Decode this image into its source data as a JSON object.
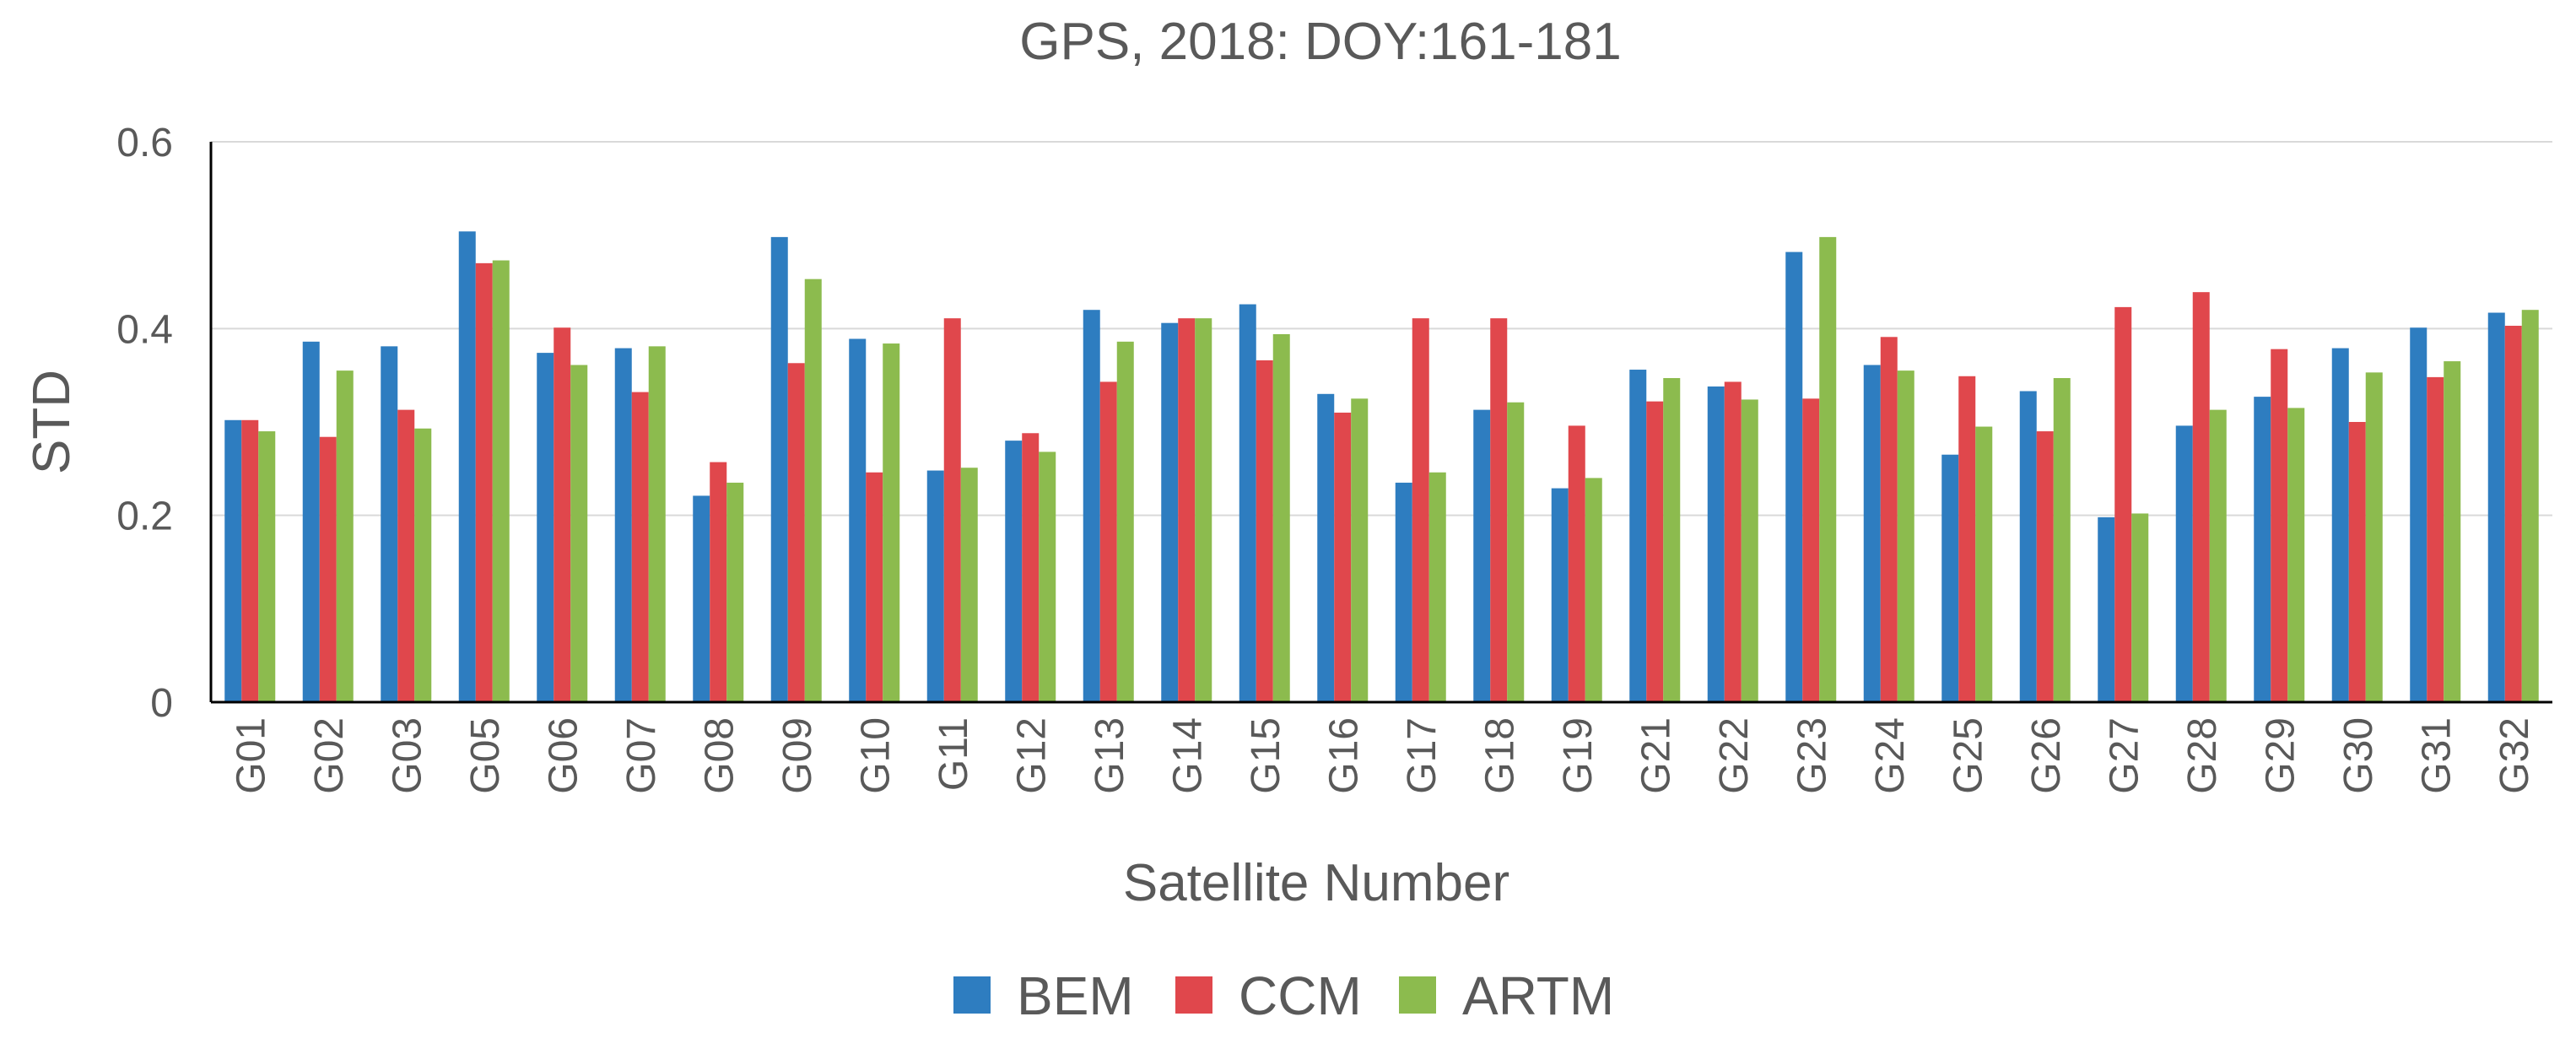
{
  "chart_data": {
    "type": "bar",
    "title": "GPS, 2018: DOY:161-181",
    "xlabel": "Satellite Number",
    "ylabel": "STD",
    "ylim": [
      0,
      0.6
    ],
    "yticks": [
      "0",
      "0.2",
      "0.4",
      "0.6"
    ],
    "grid": true,
    "legend_position": "bottom",
    "categories": [
      "G01",
      "G02",
      "G03",
      "G05",
      "G06",
      "G07",
      "G08",
      "G09",
      "G10",
      "G11",
      "G12",
      "G13",
      "G14",
      "G15",
      "G16",
      "G17",
      "G18",
      "G19",
      "G21",
      "G22",
      "G23",
      "G24",
      "G25",
      "G26",
      "G27",
      "G28",
      "G29",
      "G30",
      "G31",
      "G32"
    ],
    "series": [
      {
        "name": "BEM",
        "color": "#2E7DC0",
        "values": [
          0.302,
          0.386,
          0.381,
          0.504,
          0.374,
          0.379,
          0.221,
          0.498,
          0.389,
          0.248,
          0.28,
          0.42,
          0.406,
          0.426,
          0.33,
          0.235,
          0.313,
          0.229,
          0.356,
          0.338,
          0.482,
          0.361,
          0.265,
          0.333,
          0.198,
          0.296,
          0.327,
          0.379,
          0.401,
          0.417
        ]
      },
      {
        "name": "CCM",
        "color": "#E0474C",
        "values": [
          0.302,
          0.284,
          0.313,
          0.47,
          0.401,
          0.332,
          0.257,
          0.363,
          0.246,
          0.411,
          0.288,
          0.343,
          0.411,
          0.366,
          0.31,
          0.411,
          0.411,
          0.296,
          0.322,
          0.343,
          0.325,
          0.391,
          0.349,
          0.29,
          0.423,
          0.439,
          0.378,
          0.3,
          0.348,
          0.403
        ]
      },
      {
        "name": "ARTM",
        "color": "#8CBB4E",
        "values": [
          0.29,
          0.355,
          0.293,
          0.473,
          0.361,
          0.381,
          0.235,
          0.453,
          0.384,
          0.251,
          0.268,
          0.386,
          0.411,
          0.394,
          0.325,
          0.246,
          0.321,
          0.24,
          0.347,
          0.324,
          0.498,
          0.355,
          0.295,
          0.347,
          0.202,
          0.313,
          0.315,
          0.353,
          0.365,
          0.42
        ]
      }
    ]
  }
}
